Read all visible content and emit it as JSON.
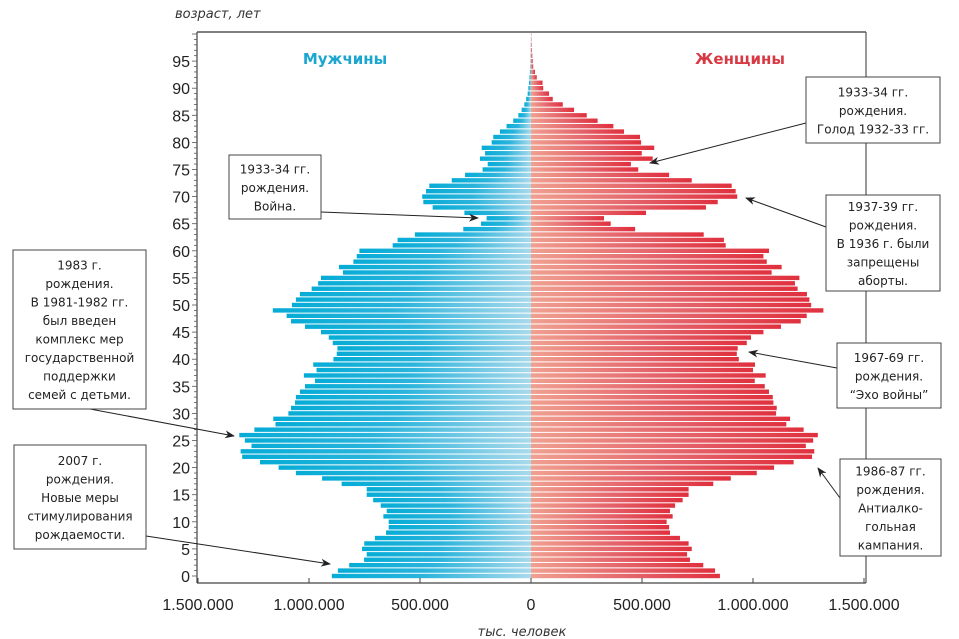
{
  "chart_data": {
    "type": "bar",
    "orientation": "horizontal-pyramid",
    "ylabel": "возраст, лет",
    "xlabel": "тыс. человек",
    "ages": [
      0,
      1,
      2,
      3,
      4,
      5,
      6,
      7,
      8,
      9,
      10,
      11,
      12,
      13,
      14,
      15,
      16,
      17,
      18,
      19,
      20,
      21,
      22,
      23,
      24,
      25,
      26,
      27,
      28,
      29,
      30,
      31,
      32,
      33,
      34,
      35,
      36,
      37,
      38,
      39,
      40,
      41,
      42,
      43,
      44,
      45,
      46,
      47,
      48,
      49,
      50,
      51,
      52,
      53,
      54,
      55,
      56,
      57,
      58,
      59,
      60,
      61,
      62,
      63,
      64,
      65,
      66,
      67,
      68,
      69,
      70,
      71,
      72,
      73,
      74,
      75,
      76,
      77,
      78,
      79,
      80,
      81,
      82,
      83,
      84,
      85,
      86,
      87,
      88,
      89,
      90,
      91,
      92,
      93,
      94,
      95,
      96,
      97,
      98,
      99,
      100
    ],
    "yticks": [
      "0",
      "5",
      "10",
      "15",
      "20",
      "25",
      "30",
      "35",
      "40",
      "45",
      "50",
      "55",
      "60",
      "65",
      "70",
      "75",
      "80",
      "85",
      "90",
      "95"
    ],
    "xticks": [
      "1.500.000",
      "1.000.000",
      "500.000",
      "0",
      "500.000",
      "1.000.000",
      "1.500.000"
    ],
    "xlim": [
      -1500000,
      1500000
    ],
    "ylim": [
      0,
      100
    ],
    "series": [
      {
        "name": "Мужчины",
        "color": "#12acd6",
        "side": "left",
        "values": [
          897000,
          870000,
          819000,
          752000,
          740000,
          761000,
          751000,
          703000,
          653000,
          641000,
          641000,
          665000,
          650000,
          677000,
          711000,
          740000,
          740000,
          853000,
          941000,
          1059000,
          1137000,
          1221000,
          1301000,
          1308000,
          1259000,
          1289000,
          1314000,
          1246000,
          1151000,
          1161000,
          1093000,
          1081000,
          1063000,
          1059000,
          1041000,
          1018000,
          973000,
          1023000,
          966000,
          981000,
          890000,
          875000,
          872000,
          893000,
          911000,
          946000,
          1018000,
          1081000,
          1101000,
          1163000,
          1077000,
          1059000,
          1041000,
          988000,
          959000,
          946000,
          847000,
          865000,
          800000,
          785000,
          773000,
          623000,
          601000,
          523000,
          305000,
          225000,
          200000,
          300000,
          443000,
          485000,
          490000,
          473000,
          458000,
          357000,
          297000,
          218000,
          195000,
          230000,
          207000,
          222000,
          177000,
          170000,
          140000,
          110000,
          80000,
          57000,
          42000,
          30000,
          22000,
          15000,
          12000,
          9000,
          7000,
          5000,
          3000,
          2000,
          1500,
          1000,
          800,
          500,
          300
        ]
      },
      {
        "name": "Женщины",
        "color": "#e0323f",
        "side": "right",
        "values": [
          851000,
          829000,
          776000,
          716000,
          703000,
          724000,
          710000,
          671000,
          626000,
          622000,
          611000,
          638000,
          626000,
          649000,
          683000,
          710000,
          710000,
          821000,
          900000,
          1017000,
          1095000,
          1183000,
          1266000,
          1276000,
          1238000,
          1271000,
          1292000,
          1228000,
          1150000,
          1167000,
          1104000,
          1107000,
          1092000,
          1089000,
          1072000,
          1053000,
          1008000,
          1057000,
          1000000,
          1009000,
          936000,
          927000,
          931000,
          972000,
          991000,
          1047000,
          1126000,
          1215000,
          1242000,
          1317000,
          1262000,
          1254000,
          1243000,
          1201000,
          1189000,
          1209000,
          1084000,
          1129000,
          1062000,
          1047000,
          1072000,
          877000,
          869000,
          778000,
          469000,
          359000,
          329000,
          518000,
          788000,
          841000,
          929000,
          922000,
          904000,
          724000,
          622000,
          483000,
          450000,
          548000,
          499000,
          555000,
          496000,
          491000,
          419000,
          371000,
          300000,
          251000,
          194000,
          143000,
          98000,
          81000,
          55000,
          52000,
          26000,
          18000,
          10000,
          8000,
          6000,
          4000,
          3000,
          2000,
          1000
        ]
      }
    ],
    "annotations": [
      {
        "id": "war",
        "lines": [
          "1933-34 гг.",
          "рождения.",
          "Война."
        ]
      },
      {
        "id": "famine",
        "lines": [
          "1933-34 гг.",
          "рождения.",
          "Голод 1932-33 гг."
        ]
      },
      {
        "id": "abortion",
        "lines": [
          "1937-39 гг.",
          "рождения.",
          "В 1936 г. были",
          "запрещены",
          "аборты."
        ]
      },
      {
        "id": "echo",
        "lines": [
          "1967-69 гг.",
          "рождения.",
          "“Эхо войны”"
        ]
      },
      {
        "id": "alcohol",
        "lines": [
          "1986-87 гг.",
          "рождения.",
          "Антиалко-",
          "гольная",
          "кампания."
        ]
      },
      {
        "id": "support1983",
        "lines": [
          "1983 г.",
          "рождения.",
          "В 1981-1982 гг.",
          "был введен",
          "комплекс мер",
          "государственной",
          "поддержки",
          "семей с детьми."
        ]
      },
      {
        "id": "support2007",
        "lines": [
          "2007 г.",
          "рождения.",
          "Новые меры",
          "стимулирования",
          "рождаемости."
        ]
      }
    ]
  }
}
